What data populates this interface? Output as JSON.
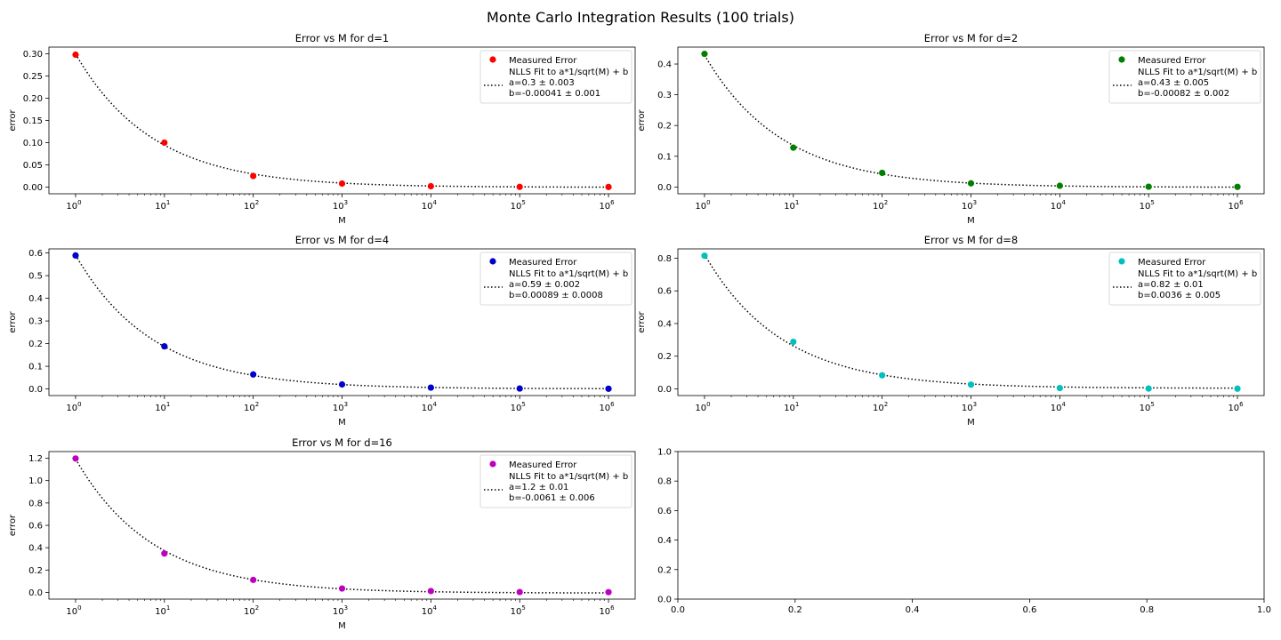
{
  "figure": {
    "title": "Monte Carlo Integration Results (100 trials)"
  },
  "chart_data": [
    {
      "type": "scatter",
      "title": "Error vs M for d=1",
      "xlabel": "M",
      "ylabel": "error",
      "xscale": "log",
      "x": [
        1,
        10,
        100,
        1000,
        10000,
        100000,
        1000000
      ],
      "x_tick_labels": [
        [
          "10",
          "0"
        ],
        [
          "10",
          "1"
        ],
        [
          "10",
          "2"
        ],
        [
          "10",
          "3"
        ],
        [
          "10",
          "4"
        ],
        [
          "10",
          "5"
        ],
        [
          "10",
          "6"
        ]
      ],
      "y_ticks": [
        0,
        0.05,
        0.1,
        0.15,
        0.2,
        0.25,
        0.3
      ],
      "y_tick_labels": [
        "0.00",
        "0.05",
        "0.10",
        "0.15",
        "0.20",
        "0.25",
        "0.30"
      ],
      "ylim": [
        -0.015,
        0.315
      ],
      "series": [
        {
          "name": "Measured Error",
          "kind": "points",
          "color": "#ff0000",
          "values": [
            0.298,
            0.1,
            0.025,
            0.008,
            0.002,
            0.0005,
            0.0003
          ]
        },
        {
          "name": "NLLS Fit to a*1/sqrt(M) + b",
          "kind": "fit",
          "color": "#000000",
          "style": "dotted",
          "a": 0.3,
          "b": -0.00041
        }
      ],
      "legend": {
        "position": "top-right",
        "lines": [
          "Measured Error",
          "NLLS Fit to a*1/sqrt(M) + b",
          "a=0.3 ± 0.003",
          "b=-0.00041 ± 0.001"
        ]
      }
    },
    {
      "type": "scatter",
      "title": "Error vs M for d=2",
      "xlabel": "M",
      "ylabel": "error",
      "xscale": "log",
      "x": [
        1,
        10,
        100,
        1000,
        10000,
        100000,
        1000000
      ],
      "x_tick_labels": [
        [
          "10",
          "0"
        ],
        [
          "10",
          "1"
        ],
        [
          "10",
          "2"
        ],
        [
          "10",
          "3"
        ],
        [
          "10",
          "4"
        ],
        [
          "10",
          "5"
        ],
        [
          "10",
          "6"
        ]
      ],
      "y_ticks": [
        0,
        0.1,
        0.2,
        0.3,
        0.4
      ],
      "y_tick_labels": [
        "0.0",
        "0.1",
        "0.2",
        "0.3",
        "0.4"
      ],
      "ylim": [
        -0.022,
        0.455
      ],
      "series": [
        {
          "name": "Measured Error",
          "kind": "points",
          "color": "#008000",
          "values": [
            0.433,
            0.128,
            0.046,
            0.012,
            0.004,
            0.001,
            0.0005
          ]
        },
        {
          "name": "NLLS Fit to a*1/sqrt(M) + b",
          "kind": "fit",
          "color": "#000000",
          "style": "dotted",
          "a": 0.43,
          "b": -0.00082
        }
      ],
      "legend": {
        "position": "top-right",
        "lines": [
          "Measured Error",
          "NLLS Fit to a*1/sqrt(M) + b",
          "a=0.43 ± 0.005",
          "b=-0.00082 ± 0.002"
        ]
      }
    },
    {
      "type": "scatter",
      "title": "Error vs M for d=4",
      "xlabel": "M",
      "ylabel": "error",
      "xscale": "log",
      "x": [
        1,
        10,
        100,
        1000,
        10000,
        100000,
        1000000
      ],
      "x_tick_labels": [
        [
          "10",
          "0"
        ],
        [
          "10",
          "1"
        ],
        [
          "10",
          "2"
        ],
        [
          "10",
          "3"
        ],
        [
          "10",
          "4"
        ],
        [
          "10",
          "5"
        ],
        [
          "10",
          "6"
        ]
      ],
      "y_ticks": [
        0,
        0.1,
        0.2,
        0.3,
        0.4,
        0.5,
        0.6
      ],
      "y_tick_labels": [
        "0.0",
        "0.1",
        "0.2",
        "0.3",
        "0.4",
        "0.5",
        "0.6"
      ],
      "ylim": [
        -0.029,
        0.618
      ],
      "series": [
        {
          "name": "Measured Error",
          "kind": "points",
          "color": "#0000cc",
          "values": [
            0.589,
            0.188,
            0.064,
            0.02,
            0.006,
            0.002,
            0.001
          ]
        },
        {
          "name": "NLLS Fit to a*1/sqrt(M) + b",
          "kind": "fit",
          "color": "#000000",
          "style": "dotted",
          "a": 0.59,
          "b": 0.00089
        }
      ],
      "legend": {
        "position": "top-right",
        "lines": [
          "Measured Error",
          "NLLS Fit to a*1/sqrt(M) + b",
          "a=0.59 ± 0.002",
          "b=0.00089 ± 0.0008"
        ]
      }
    },
    {
      "type": "scatter",
      "title": "Error vs M for d=8",
      "xlabel": "M",
      "ylabel": "error",
      "xscale": "log",
      "x": [
        1,
        10,
        100,
        1000,
        10000,
        100000,
        1000000
      ],
      "x_tick_labels": [
        [
          "10",
          "0"
        ],
        [
          "10",
          "1"
        ],
        [
          "10",
          "2"
        ],
        [
          "10",
          "3"
        ],
        [
          "10",
          "4"
        ],
        [
          "10",
          "5"
        ],
        [
          "10",
          "6"
        ]
      ],
      "y_ticks": [
        0,
        0.2,
        0.4,
        0.6,
        0.8
      ],
      "y_tick_labels": [
        "0.0",
        "0.2",
        "0.4",
        "0.6",
        "0.8"
      ],
      "ylim": [
        -0.041,
        0.857
      ],
      "series": [
        {
          "name": "Measured Error",
          "kind": "points",
          "color": "#00bfbf",
          "values": [
            0.815,
            0.288,
            0.083,
            0.026,
            0.005,
            0.002,
            0.001
          ]
        },
        {
          "name": "NLLS Fit to a*1/sqrt(M) + b",
          "kind": "fit",
          "color": "#000000",
          "style": "dotted",
          "a": 0.82,
          "b": 0.0036
        }
      ],
      "legend": {
        "position": "top-right",
        "lines": [
          "Measured Error",
          "NLLS Fit to a*1/sqrt(M) + b",
          "a=0.82 ± 0.01",
          "b=0.0036 ± 0.005"
        ]
      }
    },
    {
      "type": "scatter",
      "title": "Error vs M for d=16",
      "xlabel": "M",
      "ylabel": "error",
      "xscale": "log",
      "x": [
        1,
        10,
        100,
        1000,
        10000,
        100000,
        1000000
      ],
      "x_tick_labels": [
        [
          "10",
          "0"
        ],
        [
          "10",
          "1"
        ],
        [
          "10",
          "2"
        ],
        [
          "10",
          "3"
        ],
        [
          "10",
          "4"
        ],
        [
          "10",
          "5"
        ],
        [
          "10",
          "6"
        ]
      ],
      "y_ticks": [
        0,
        0.2,
        0.4,
        0.6,
        0.8,
        1.0,
        1.2
      ],
      "y_tick_labels": [
        "0.0",
        "0.2",
        "0.4",
        "0.6",
        "0.8",
        "1.0",
        "1.2"
      ],
      "ylim": [
        -0.06,
        1.26
      ],
      "series": [
        {
          "name": "Measured Error",
          "kind": "points",
          "color": "#bf00bf",
          "values": [
            1.198,
            0.348,
            0.112,
            0.035,
            0.012,
            0.003,
            0.002
          ]
        },
        {
          "name": "NLLS Fit to a*1/sqrt(M) + b",
          "kind": "fit",
          "color": "#000000",
          "style": "dotted",
          "a": 1.2,
          "b": -0.0061
        }
      ],
      "legend": {
        "position": "top-right",
        "lines": [
          "Measured Error",
          "NLLS Fit to a*1/sqrt(M) + b",
          "a=1.2 ± 0.01",
          "b=-0.0061 ± 0.006"
        ]
      }
    },
    {
      "type": "scatter",
      "empty": true,
      "xlim": [
        0,
        1
      ],
      "ylim": [
        0,
        1
      ],
      "x_ticks": [
        0,
        0.2,
        0.4,
        0.6,
        0.8,
        1.0
      ],
      "x_tick_labels": [
        "0.0",
        "0.2",
        "0.4",
        "0.6",
        "0.8",
        "1.0"
      ],
      "y_ticks": [
        0,
        0.2,
        0.4,
        0.6,
        0.8,
        1.0
      ],
      "y_tick_labels": [
        "0.0",
        "0.2",
        "0.4",
        "0.6",
        "0.8",
        "1.0"
      ],
      "series": []
    }
  ]
}
